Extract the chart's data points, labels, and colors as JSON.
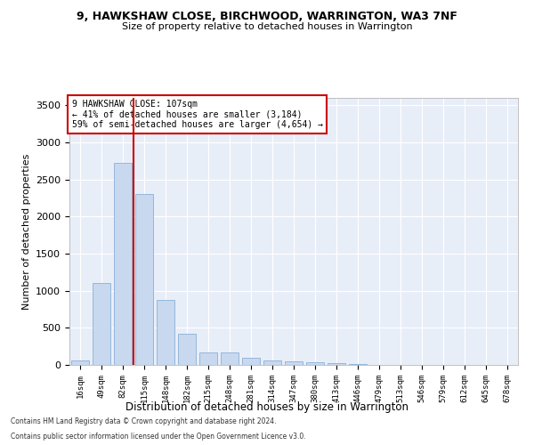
{
  "title_line1": "9, HAWKSHAW CLOSE, BIRCHWOOD, WARRINGTON, WA3 7NF",
  "title_line2": "Size of property relative to detached houses in Warrington",
  "xlabel": "Distribution of detached houses by size in Warrington",
  "ylabel": "Number of detached properties",
  "bar_color": "#c8d8ee",
  "bar_edge_color": "#8ab0d8",
  "background_color": "#e8eef8",
  "grid_color": "#ffffff",
  "categories": [
    "16sqm",
    "49sqm",
    "82sqm",
    "115sqm",
    "148sqm",
    "182sqm",
    "215sqm",
    "248sqm",
    "281sqm",
    "314sqm",
    "347sqm",
    "380sqm",
    "413sqm",
    "446sqm",
    "479sqm",
    "513sqm",
    "546sqm",
    "579sqm",
    "612sqm",
    "645sqm",
    "678sqm"
  ],
  "values": [
    55,
    1100,
    2720,
    2300,
    880,
    420,
    170,
    170,
    95,
    60,
    50,
    35,
    30,
    10,
    5,
    3,
    0,
    0,
    0,
    0,
    0
  ],
  "vline_x": 2.5,
  "vline_color": "#cc0000",
  "annotation_text": "9 HAWKSHAW CLOSE: 107sqm\n← 41% of detached houses are smaller (3,184)\n59% of semi-detached houses are larger (4,654) →",
  "annotation_box_color": "#ffffff",
  "annotation_box_edge": "#cc0000",
  "ylim": [
    0,
    3600
  ],
  "yticks": [
    0,
    500,
    1000,
    1500,
    2000,
    2500,
    3000,
    3500
  ],
  "footer_line1": "Contains HM Land Registry data © Crown copyright and database right 2024.",
  "footer_line2": "Contains public sector information licensed under the Open Government Licence v3.0."
}
